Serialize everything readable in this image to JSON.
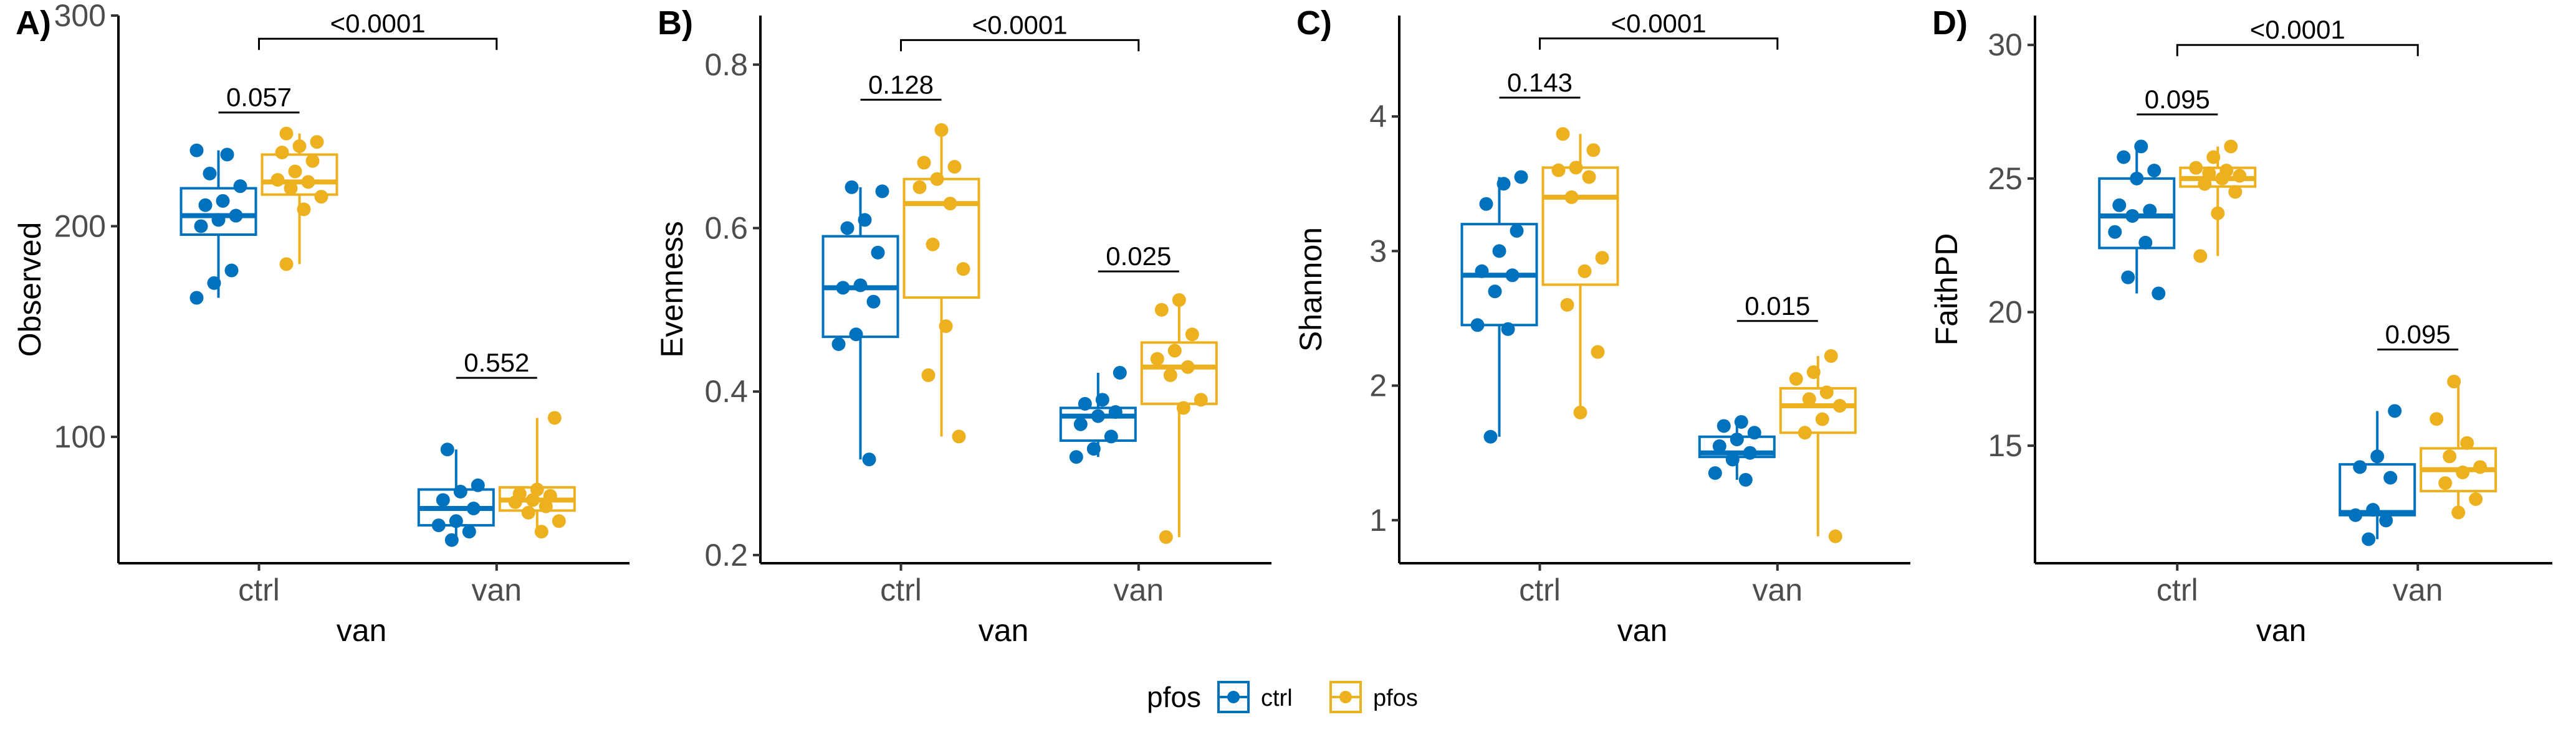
{
  "colors": {
    "ctrl": "#0072BD",
    "pfos": "#EDB120"
  },
  "legend": {
    "title": "pfos",
    "entries": [
      {
        "key": "ctrl",
        "label": "ctrl"
      },
      {
        "key": "pfos",
        "label": "pfos"
      }
    ]
  },
  "chart_data": [
    {
      "type": "box",
      "panel": "A)",
      "xlabel": "van",
      "ylabel": "Observed",
      "categories": [
        "ctrl",
        "van"
      ],
      "ylim": [
        40,
        300
      ],
      "yticks": [
        100,
        200,
        300
      ],
      "groups": [
        {
          "category": "ctrl",
          "series": "ctrl",
          "q1": 196,
          "median": 205,
          "q3": 218,
          "whisker_low": 166,
          "whisker_high": 236,
          "points": [
            166,
            173,
            179,
            200,
            203,
            205,
            210,
            212,
            219,
            225,
            234,
            236
          ]
        },
        {
          "category": "ctrl",
          "series": "pfos",
          "q1": 215,
          "median": 221,
          "q3": 234,
          "whisker_low": 182,
          "whisker_high": 244,
          "points": [
            182,
            208,
            214,
            218,
            221,
            222,
            226,
            231,
            235,
            238,
            240,
            244
          ]
        },
        {
          "category": "van",
          "series": "ctrl",
          "q1": 58,
          "median": 66,
          "q3": 75,
          "whisker_low": 51,
          "whisker_high": 94,
          "points": [
            51,
            55,
            58,
            60,
            66,
            70,
            74,
            77,
            94
          ]
        },
        {
          "category": "van",
          "series": "pfos",
          "q1": 65,
          "median": 70,
          "q3": 76,
          "whisker_low": 55,
          "whisker_high": 109,
          "points": [
            55,
            60,
            64,
            67,
            69,
            70,
            72,
            73,
            75,
            109
          ]
        }
      ],
      "comparisons": [
        {
          "label": "0.057",
          "from": [
            "ctrl",
            "ctrl"
          ],
          "to": [
            "ctrl",
            "pfos"
          ],
          "y": 254
        },
        {
          "label": "0.552",
          "from": [
            "van",
            "ctrl"
          ],
          "to": [
            "van",
            "pfos"
          ],
          "y": 128
        },
        {
          "label": "<0.0001",
          "from": [
            "ctrl",
            null
          ],
          "to": [
            "van",
            null
          ],
          "y": 289
        }
      ]
    },
    {
      "type": "box",
      "panel": "B)",
      "xlabel": "van",
      "ylabel": "Evenness",
      "categories": [
        "ctrl",
        "van"
      ],
      "ylim": [
        0.19,
        0.86
      ],
      "yticks": [
        0.2,
        0.4,
        0.6,
        0.8
      ],
      "groups": [
        {
          "category": "ctrl",
          "series": "ctrl",
          "q1": 0.467,
          "median": 0.527,
          "q3": 0.59,
          "whisker_low": 0.317,
          "whisker_high": 0.65,
          "points": [
            0.317,
            0.458,
            0.47,
            0.51,
            0.527,
            0.53,
            0.57,
            0.6,
            0.61,
            0.645,
            0.65
          ]
        },
        {
          "category": "ctrl",
          "series": "pfos",
          "q1": 0.515,
          "median": 0.63,
          "q3": 0.66,
          "whisker_low": 0.345,
          "whisker_high": 0.72,
          "points": [
            0.345,
            0.42,
            0.48,
            0.55,
            0.58,
            0.63,
            0.65,
            0.66,
            0.675,
            0.68,
            0.72
          ]
        },
        {
          "category": "van",
          "series": "ctrl",
          "q1": 0.34,
          "median": 0.37,
          "q3": 0.38,
          "whisker_low": 0.32,
          "whisker_high": 0.423,
          "points": [
            0.32,
            0.33,
            0.345,
            0.36,
            0.37,
            0.375,
            0.385,
            0.39,
            0.423
          ]
        },
        {
          "category": "van",
          "series": "pfos",
          "q1": 0.385,
          "median": 0.43,
          "q3": 0.46,
          "whisker_low": 0.222,
          "whisker_high": 0.512,
          "points": [
            0.222,
            0.38,
            0.39,
            0.42,
            0.43,
            0.44,
            0.45,
            0.47,
            0.5,
            0.512
          ]
        }
      ],
      "comparisons": [
        {
          "label": "0.128",
          "from": [
            "ctrl",
            "ctrl"
          ],
          "to": [
            "ctrl",
            "pfos"
          ],
          "y": 0.757
        },
        {
          "label": "0.025",
          "from": [
            "van",
            "ctrl"
          ],
          "to": [
            "van",
            "pfos"
          ],
          "y": 0.547
        },
        {
          "label": "<0.0001",
          "from": [
            "ctrl",
            null
          ],
          "to": [
            "van",
            null
          ],
          "y": 0.83
        }
      ]
    },
    {
      "type": "box",
      "panel": "C)",
      "xlabel": "van",
      "ylabel": "Shannon",
      "categories": [
        "ctrl",
        "van"
      ],
      "ylim": [
        0.68,
        4.75
      ],
      "yticks": [
        1,
        2,
        3,
        4
      ],
      "groups": [
        {
          "category": "ctrl",
          "series": "ctrl",
          "q1": 2.45,
          "median": 2.82,
          "q3": 3.2,
          "whisker_low": 1.62,
          "whisker_high": 3.55,
          "points": [
            1.62,
            2.42,
            2.45,
            2.7,
            2.82,
            2.85,
            3.0,
            3.15,
            3.35,
            3.5,
            3.55
          ]
        },
        {
          "category": "ctrl",
          "series": "pfos",
          "q1": 2.75,
          "median": 3.4,
          "q3": 3.62,
          "whisker_low": 1.8,
          "whisker_high": 3.87,
          "points": [
            1.8,
            2.25,
            2.6,
            2.85,
            2.95,
            3.4,
            3.55,
            3.6,
            3.62,
            3.75,
            3.87
          ]
        },
        {
          "category": "van",
          "series": "ctrl",
          "q1": 1.47,
          "median": 1.5,
          "q3": 1.62,
          "whisker_low": 1.3,
          "whisker_high": 1.73,
          "points": [
            1.3,
            1.35,
            1.45,
            1.5,
            1.55,
            1.6,
            1.65,
            1.7,
            1.73
          ]
        },
        {
          "category": "van",
          "series": "pfos",
          "q1": 1.65,
          "median": 1.85,
          "q3": 1.98,
          "whisker_low": 0.88,
          "whisker_high": 2.22,
          "points": [
            0.88,
            1.65,
            1.75,
            1.85,
            1.9,
            1.95,
            2.05,
            2.1,
            2.22
          ]
        }
      ],
      "comparisons": [
        {
          "label": "0.143",
          "from": [
            "ctrl",
            "ctrl"
          ],
          "to": [
            "ctrl",
            "pfos"
          ],
          "y": 4.14
        },
        {
          "label": "0.015",
          "from": [
            "van",
            "ctrl"
          ],
          "to": [
            "van",
            "pfos"
          ],
          "y": 2.48
        },
        {
          "label": "<0.0001",
          "from": [
            "ctrl",
            null
          ],
          "to": [
            "van",
            null
          ],
          "y": 4.58
        }
      ]
    },
    {
      "type": "box",
      "panel": "D)",
      "xlabel": "van",
      "ylabel": "FaithPD",
      "categories": [
        "ctrl",
        "van"
      ],
      "ylim": [
        10.6,
        31.1
      ],
      "yticks": [
        15,
        20,
        25,
        30
      ],
      "groups": [
        {
          "category": "ctrl",
          "series": "ctrl",
          "q1": 22.4,
          "median": 23.6,
          "q3": 25.0,
          "whisker_low": 20.7,
          "whisker_high": 26.2,
          "points": [
            20.7,
            21.3,
            22.6,
            23.0,
            23.6,
            23.8,
            24.0,
            25.0,
            25.3,
            25.8,
            26.2
          ]
        },
        {
          "category": "ctrl",
          "series": "pfos",
          "q1": 24.7,
          "median": 25.0,
          "q3": 25.4,
          "whisker_low": 22.1,
          "whisker_high": 26.2,
          "points": [
            22.1,
            23.7,
            24.5,
            24.8,
            25.0,
            25.1,
            25.2,
            25.3,
            25.4,
            25.8,
            26.2
          ]
        },
        {
          "category": "van",
          "series": "ctrl",
          "q1": 12.4,
          "median": 12.5,
          "q3": 14.3,
          "whisker_low": 11.5,
          "whisker_high": 16.3,
          "points": [
            11.5,
            12.2,
            12.4,
            12.6,
            13.8,
            14.2,
            14.6,
            16.3
          ]
        },
        {
          "category": "van",
          "series": "pfos",
          "q1": 13.3,
          "median": 14.1,
          "q3": 14.9,
          "whisker_low": 12.5,
          "whisker_high": 17.4,
          "points": [
            12.5,
            13.0,
            13.6,
            14.0,
            14.2,
            14.6,
            15.1,
            16.0,
            17.4
          ]
        }
      ],
      "comparisons": [
        {
          "label": "0.095",
          "from": [
            "ctrl",
            "ctrl"
          ],
          "to": [
            "ctrl",
            "pfos"
          ],
          "y": 27.4
        },
        {
          "label": "0.095",
          "from": [
            "van",
            "ctrl"
          ],
          "to": [
            "van",
            "pfos"
          ],
          "y": 18.6
        },
        {
          "label": "<0.0001",
          "from": [
            "ctrl",
            null
          ],
          "to": [
            "van",
            null
          ],
          "y": 30.0
        }
      ]
    }
  ]
}
